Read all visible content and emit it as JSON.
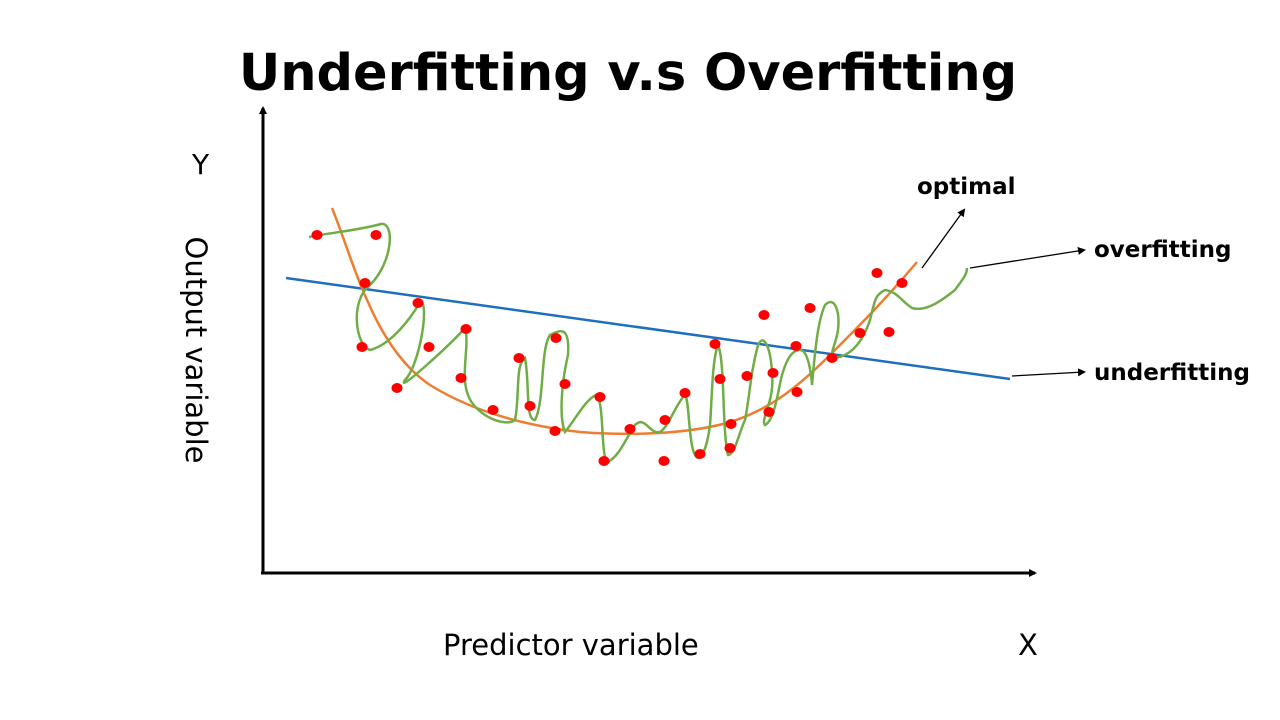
{
  "diagram": {
    "title": "Underfitting v.s Overfitting",
    "y_axis_letter": "Y",
    "x_axis_letter": "X",
    "y_axis_label": "Output variable",
    "x_axis_label": "Predictor variable",
    "annotations": {
      "optimal": "optimal",
      "overfitting": "overfitting",
      "underfitting": "underfitting"
    },
    "colors": {
      "axes": "#000000",
      "data_points": "#ff0000",
      "underfitting_line": "#1f6fbf",
      "optimal_curve": "#ed7d31",
      "overfitting_curve": "#70ad47"
    }
  }
}
